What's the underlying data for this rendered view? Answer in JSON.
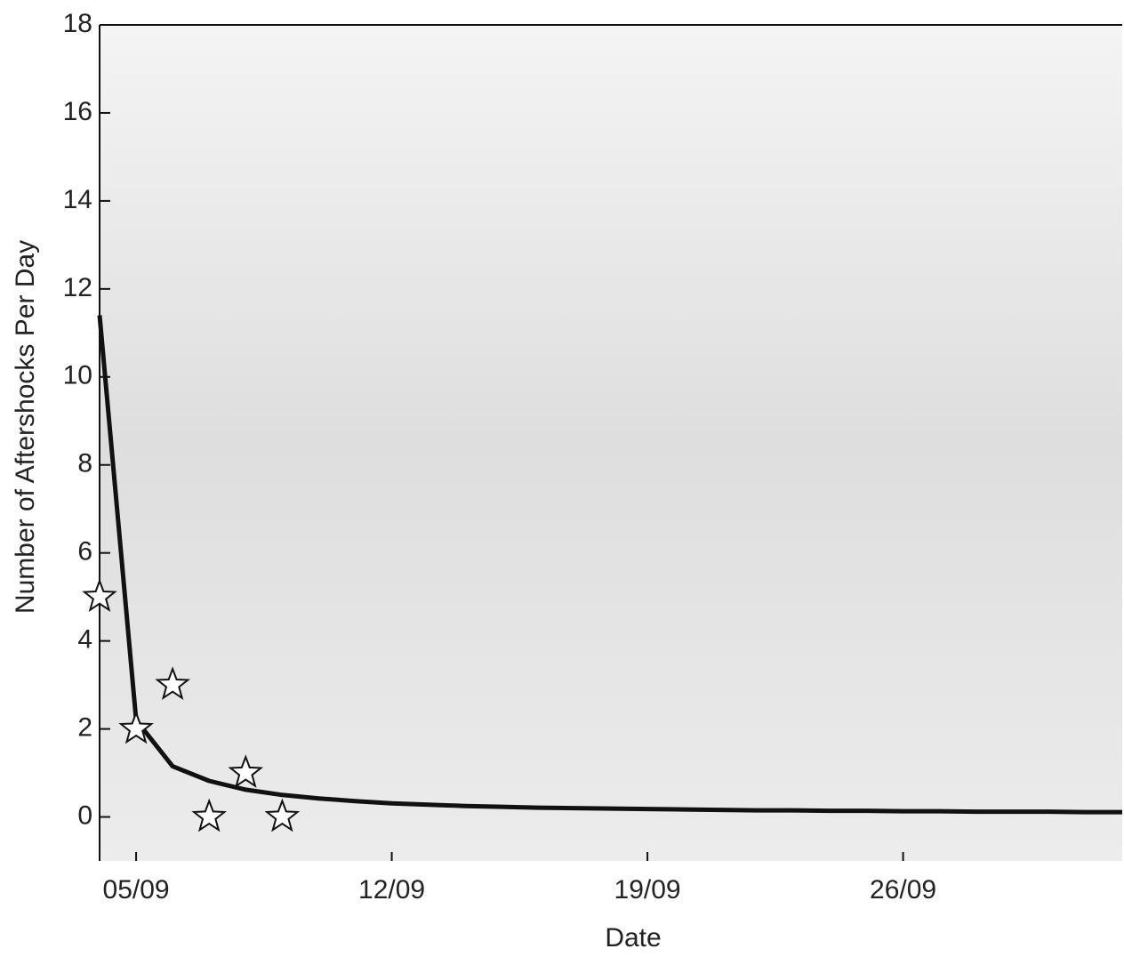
{
  "chart_data": {
    "type": "line",
    "xlabel": "Date",
    "ylabel": "Number of Aftershocks Per Day",
    "xlim": [
      "04/09",
      "02/10"
    ],
    "xticks": [
      "05/09",
      "12/09",
      "19/09",
      "26/09"
    ],
    "ylim": [
      -1,
      18
    ],
    "yticks": [
      0,
      2,
      4,
      6,
      8,
      10,
      12,
      14,
      16,
      18
    ],
    "series": [
      {
        "color": "#111111",
        "x": [
          "04/09",
          "05/09",
          "06/09",
          "07/09",
          "08/09",
          "09/09",
          "10/09",
          "11/09",
          "12/09",
          "13/09",
          "14/09",
          "15/09",
          "16/09",
          "17/09",
          "18/09",
          "19/09",
          "20/09",
          "21/09",
          "22/09",
          "23/09",
          "24/09",
          "25/09",
          "26/09",
          "27/09",
          "28/09",
          "29/09",
          "30/09",
          "01/10",
          "02/10"
        ],
        "values": [
          11.4,
          2.2,
          1.15,
          0.82,
          0.62,
          0.5,
          0.42,
          0.36,
          0.31,
          0.28,
          0.25,
          0.23,
          0.21,
          0.2,
          0.19,
          0.18,
          0.17,
          0.16,
          0.15,
          0.15,
          0.14,
          0.14,
          0.13,
          0.13,
          0.12,
          0.12,
          0.12,
          0.11,
          0.11
        ]
      },
      {
        "color": "#ffffff",
        "marker": "star",
        "x": [
          "04/09",
          "05/09",
          "06/09",
          "07/09",
          "08/09",
          "09/09"
        ],
        "values": [
          5,
          2,
          3,
          0,
          1,
          0
        ]
      }
    ]
  }
}
